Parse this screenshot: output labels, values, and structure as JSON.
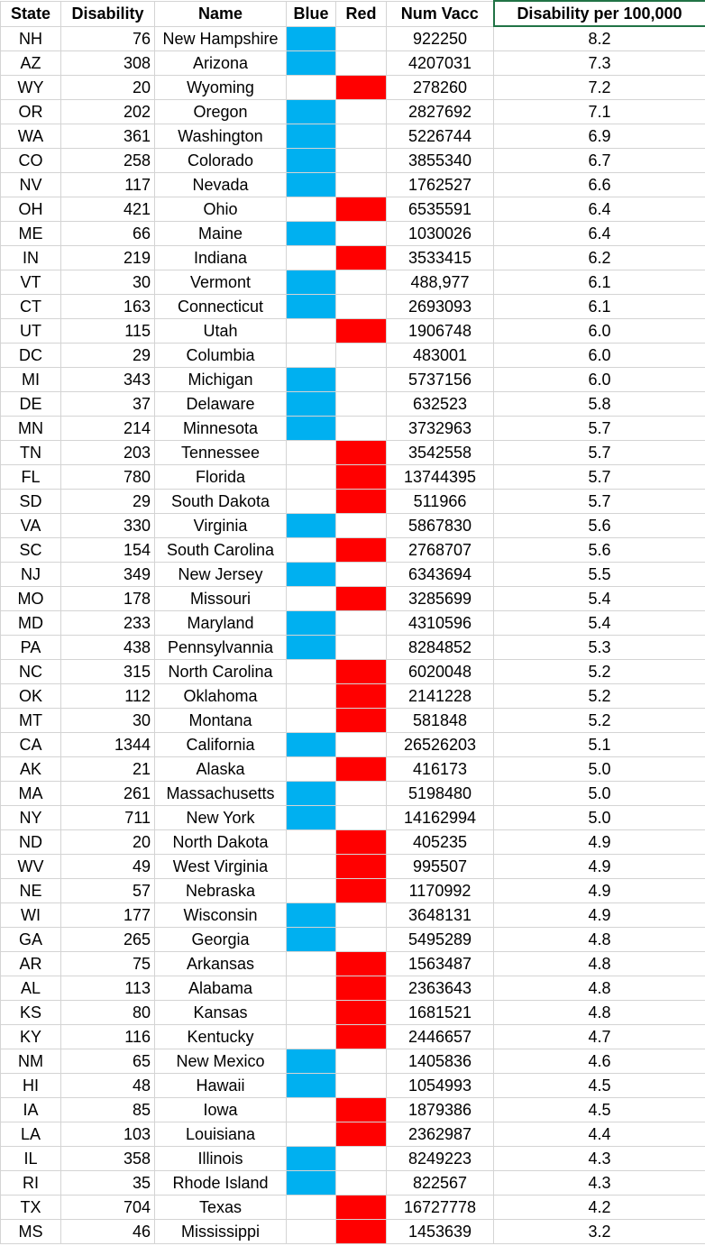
{
  "colors": {
    "blue_fill": "#00b0f0",
    "red_fill": "#ff0000",
    "gridline": "#d4d4d4",
    "active_header_border": "#217346"
  },
  "headers": {
    "state": "State",
    "disability": "Disability",
    "name": "Name",
    "blue": "Blue",
    "red": "Red",
    "num_vacc": "Num Vacc",
    "rate": "Disability per 100,000"
  },
  "rows": [
    {
      "state": "NH",
      "disability": "76",
      "name": "New Hampshire",
      "party": "blue",
      "num_vacc": "922250",
      "rate": "8.2"
    },
    {
      "state": "AZ",
      "disability": "308",
      "name": "Arizona",
      "party": "blue",
      "num_vacc": "4207031",
      "rate": "7.3"
    },
    {
      "state": "WY",
      "disability": "20",
      "name": "Wyoming",
      "party": "red",
      "num_vacc": "278260",
      "rate": "7.2"
    },
    {
      "state": "OR",
      "disability": "202",
      "name": "Oregon",
      "party": "blue",
      "num_vacc": "2827692",
      "rate": "7.1"
    },
    {
      "state": "WA",
      "disability": "361",
      "name": "Washington",
      "party": "blue",
      "num_vacc": "5226744",
      "rate": "6.9"
    },
    {
      "state": "CO",
      "disability": "258",
      "name": "Colorado",
      "party": "blue",
      "num_vacc": "3855340",
      "rate": "6.7"
    },
    {
      "state": "NV",
      "disability": "117",
      "name": "Nevada",
      "party": "blue",
      "num_vacc": "1762527",
      "rate": "6.6"
    },
    {
      "state": "OH",
      "disability": "421",
      "name": "Ohio",
      "party": "red",
      "num_vacc": "6535591",
      "rate": "6.4"
    },
    {
      "state": "ME",
      "disability": "66",
      "name": "Maine",
      "party": "blue",
      "num_vacc": "1030026",
      "rate": "6.4"
    },
    {
      "state": "IN",
      "disability": "219",
      "name": "Indiana",
      "party": "red",
      "num_vacc": "3533415",
      "rate": "6.2"
    },
    {
      "state": "VT",
      "disability": "30",
      "name": "Vermont",
      "party": "blue",
      "num_vacc": "488,977",
      "rate": "6.1"
    },
    {
      "state": "CT",
      "disability": "163",
      "name": "Connecticut",
      "party": "blue",
      "num_vacc": "2693093",
      "rate": "6.1"
    },
    {
      "state": "UT",
      "disability": "115",
      "name": "Utah",
      "party": "red",
      "num_vacc": "1906748",
      "rate": "6.0"
    },
    {
      "state": "DC",
      "disability": "29",
      "name": "Columbia",
      "party": "",
      "num_vacc": "483001",
      "rate": "6.0"
    },
    {
      "state": "MI",
      "disability": "343",
      "name": "Michigan",
      "party": "blue",
      "num_vacc": "5737156",
      "rate": "6.0"
    },
    {
      "state": "DE",
      "disability": "37",
      "name": "Delaware",
      "party": "blue",
      "num_vacc": "632523",
      "rate": "5.8"
    },
    {
      "state": "MN",
      "disability": "214",
      "name": "Minnesota",
      "party": "blue",
      "num_vacc": "3732963",
      "rate": "5.7"
    },
    {
      "state": "TN",
      "disability": "203",
      "name": "Tennessee",
      "party": "red",
      "num_vacc": "3542558",
      "rate": "5.7"
    },
    {
      "state": "FL",
      "disability": "780",
      "name": "Florida",
      "party": "red",
      "num_vacc": "13744395",
      "rate": "5.7"
    },
    {
      "state": "SD",
      "disability": "29",
      "name": "South Dakota",
      "party": "red",
      "num_vacc": "511966",
      "rate": "5.7"
    },
    {
      "state": "VA",
      "disability": "330",
      "name": "Virginia",
      "party": "blue",
      "num_vacc": "5867830",
      "rate": "5.6"
    },
    {
      "state": "SC",
      "disability": "154",
      "name": "South Carolina",
      "party": "red",
      "num_vacc": "2768707",
      "rate": "5.6"
    },
    {
      "state": "NJ",
      "disability": "349",
      "name": "New Jersey",
      "party": "blue",
      "num_vacc": "6343694",
      "rate": "5.5"
    },
    {
      "state": "MO",
      "disability": "178",
      "name": "Missouri",
      "party": "red",
      "num_vacc": "3285699",
      "rate": "5.4"
    },
    {
      "state": "MD",
      "disability": "233",
      "name": "Maryland",
      "party": "blue",
      "num_vacc": "4310596",
      "rate": "5.4"
    },
    {
      "state": "PA",
      "disability": "438",
      "name": "Pennsylvannia",
      "party": "blue",
      "num_vacc": "8284852",
      "rate": "5.3"
    },
    {
      "state": "NC",
      "disability": "315",
      "name": "North Carolina",
      "party": "red",
      "num_vacc": "6020048",
      "rate": "5.2"
    },
    {
      "state": "OK",
      "disability": "112",
      "name": "Oklahoma",
      "party": "red",
      "num_vacc": "2141228",
      "rate": "5.2"
    },
    {
      "state": "MT",
      "disability": "30",
      "name": "Montana",
      "party": "red",
      "num_vacc": "581848",
      "rate": "5.2"
    },
    {
      "state": "CA",
      "disability": "1344",
      "name": "California",
      "party": "blue",
      "num_vacc": "26526203",
      "rate": "5.1"
    },
    {
      "state": "AK",
      "disability": "21",
      "name": "Alaska",
      "party": "red",
      "num_vacc": "416173",
      "rate": "5.0"
    },
    {
      "state": "MA",
      "disability": "261",
      "name": "Massachusetts",
      "party": "blue",
      "num_vacc": "5198480",
      "rate": "5.0"
    },
    {
      "state": "NY",
      "disability": "711",
      "name": "New York",
      "party": "blue",
      "num_vacc": "14162994",
      "rate": "5.0"
    },
    {
      "state": "ND",
      "disability": "20",
      "name": "North Dakota",
      "party": "red",
      "num_vacc": "405235",
      "rate": "4.9"
    },
    {
      "state": "WV",
      "disability": "49",
      "name": "West Virginia",
      "party": "red",
      "num_vacc": "995507",
      "rate": "4.9"
    },
    {
      "state": "NE",
      "disability": "57",
      "name": "Nebraska",
      "party": "red",
      "num_vacc": "1170992",
      "rate": "4.9"
    },
    {
      "state": "WI",
      "disability": "177",
      "name": "Wisconsin",
      "party": "blue",
      "num_vacc": "3648131",
      "rate": "4.9"
    },
    {
      "state": "GA",
      "disability": "265",
      "name": "Georgia",
      "party": "blue",
      "num_vacc": "5495289",
      "rate": "4.8"
    },
    {
      "state": "AR",
      "disability": "75",
      "name": "Arkansas",
      "party": "red",
      "num_vacc": "1563487",
      "rate": "4.8"
    },
    {
      "state": "AL",
      "disability": "113",
      "name": "Alabama",
      "party": "red",
      "num_vacc": "2363643",
      "rate": "4.8"
    },
    {
      "state": "KS",
      "disability": "80",
      "name": "Kansas",
      "party": "red",
      "num_vacc": "1681521",
      "rate": "4.8"
    },
    {
      "state": "KY",
      "disability": "116",
      "name": "Kentucky",
      "party": "red",
      "num_vacc": "2446657",
      "rate": "4.7"
    },
    {
      "state": "NM",
      "disability": "65",
      "name": "New Mexico",
      "party": "blue",
      "num_vacc": "1405836",
      "rate": "4.6"
    },
    {
      "state": "HI",
      "disability": "48",
      "name": "Hawaii",
      "party": "blue",
      "num_vacc": "1054993",
      "rate": "4.5"
    },
    {
      "state": "IA",
      "disability": "85",
      "name": "Iowa",
      "party": "red",
      "num_vacc": "1879386",
      "rate": "4.5"
    },
    {
      "state": "LA",
      "disability": "103",
      "name": "Louisiana",
      "party": "red",
      "num_vacc": "2362987",
      "rate": "4.4"
    },
    {
      "state": "IL",
      "disability": "358",
      "name": "Illinois",
      "party": "blue",
      "num_vacc": "8249223",
      "rate": "4.3"
    },
    {
      "state": "RI",
      "disability": "35",
      "name": "Rhode Island",
      "party": "blue",
      "num_vacc": "822567",
      "rate": "4.3"
    },
    {
      "state": "TX",
      "disability": "704",
      "name": "Texas",
      "party": "red",
      "num_vacc": "16727778",
      "rate": "4.2"
    },
    {
      "state": "MS",
      "disability": "46",
      "name": "Mississippi",
      "party": "red",
      "num_vacc": "1453639",
      "rate": "3.2"
    }
  ]
}
